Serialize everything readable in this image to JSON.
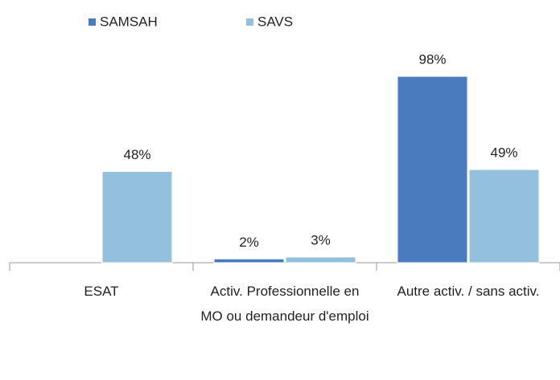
{
  "chart_data": {
    "type": "bar",
    "categories": [
      "ESAT",
      "Activ. Professionnelle en MO ou demandeur d'emploi",
      "Autre activ. / sans activ."
    ],
    "series": [
      {
        "name": "SAMSAH",
        "color": "#4a7bbf",
        "values": [
          null,
          2,
          98
        ],
        "value_labels": [
          null,
          "2%",
          "98%"
        ]
      },
      {
        "name": "SAVS",
        "color": "#93c0dd",
        "values": [
          48,
          3,
          49
        ],
        "value_labels": [
          "48%",
          "3%",
          "49%"
        ]
      }
    ],
    "legend": "top"
  }
}
